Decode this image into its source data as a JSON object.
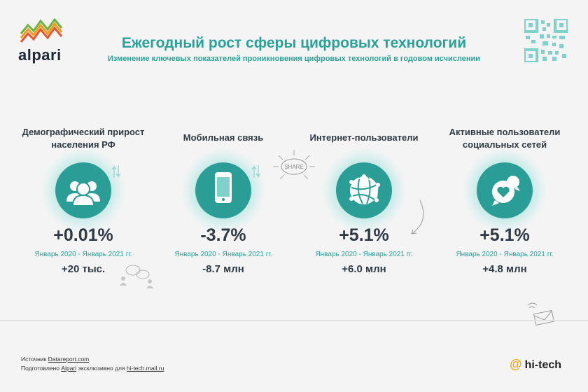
{
  "brand": {
    "name": "alpari",
    "colors": {
      "accent": "#2aa198",
      "circle": "#2a9d96",
      "text": "#2f3a44",
      "logo_orange": "#f29a1a",
      "logo_green": "#6cb33f",
      "logo_red": "#e4572e"
    }
  },
  "header": {
    "title": "Ежегодный рост сферы цифровых технологий",
    "subtitle": "Изменение ключевых показателей проникновения цифровых технологий в годовом исчислении"
  },
  "cards": [
    {
      "title_line1": "Демографический прирост",
      "title_line2": "населения РФ",
      "icon": "people-icon",
      "percent": "+0.01%",
      "period": "Январь 2020 - Январь 2021 гг.",
      "absolute": "+20 тыс."
    },
    {
      "title_line1": "Мобильная связь",
      "title_line2": "",
      "icon": "smartphone-icon",
      "percent": "-3.7%",
      "period": "Январь 2020 - Январь 2021 гг.",
      "absolute": "-8.7 млн"
    },
    {
      "title_line1": "Интернет-пользователи",
      "title_line2": "",
      "icon": "globe-network-icon",
      "percent": "+5.1%",
      "period": "Январь 2020 - Январь 2021 гг.",
      "absolute": "+6.0 млн"
    },
    {
      "title_line1": "Активные пользователи",
      "title_line2": "социальных сетей",
      "icon": "heart-chat-icon",
      "percent": "+5.1%",
      "period": "Январь 2020 - Январь 2021 гг.",
      "absolute": "+4.8 млн"
    }
  ],
  "doodles": {
    "share_label": "SHARE"
  },
  "footer": {
    "source_prefix": "Источник",
    "source_link": "Datareport.com",
    "prepared_prefix": "Подготовлено",
    "prepared_link": "Alpari",
    "prepared_middle": "эксклюзивно для",
    "prepared_site": "hi-tech.mail.ru",
    "hitech_logo": "hi-tech"
  }
}
